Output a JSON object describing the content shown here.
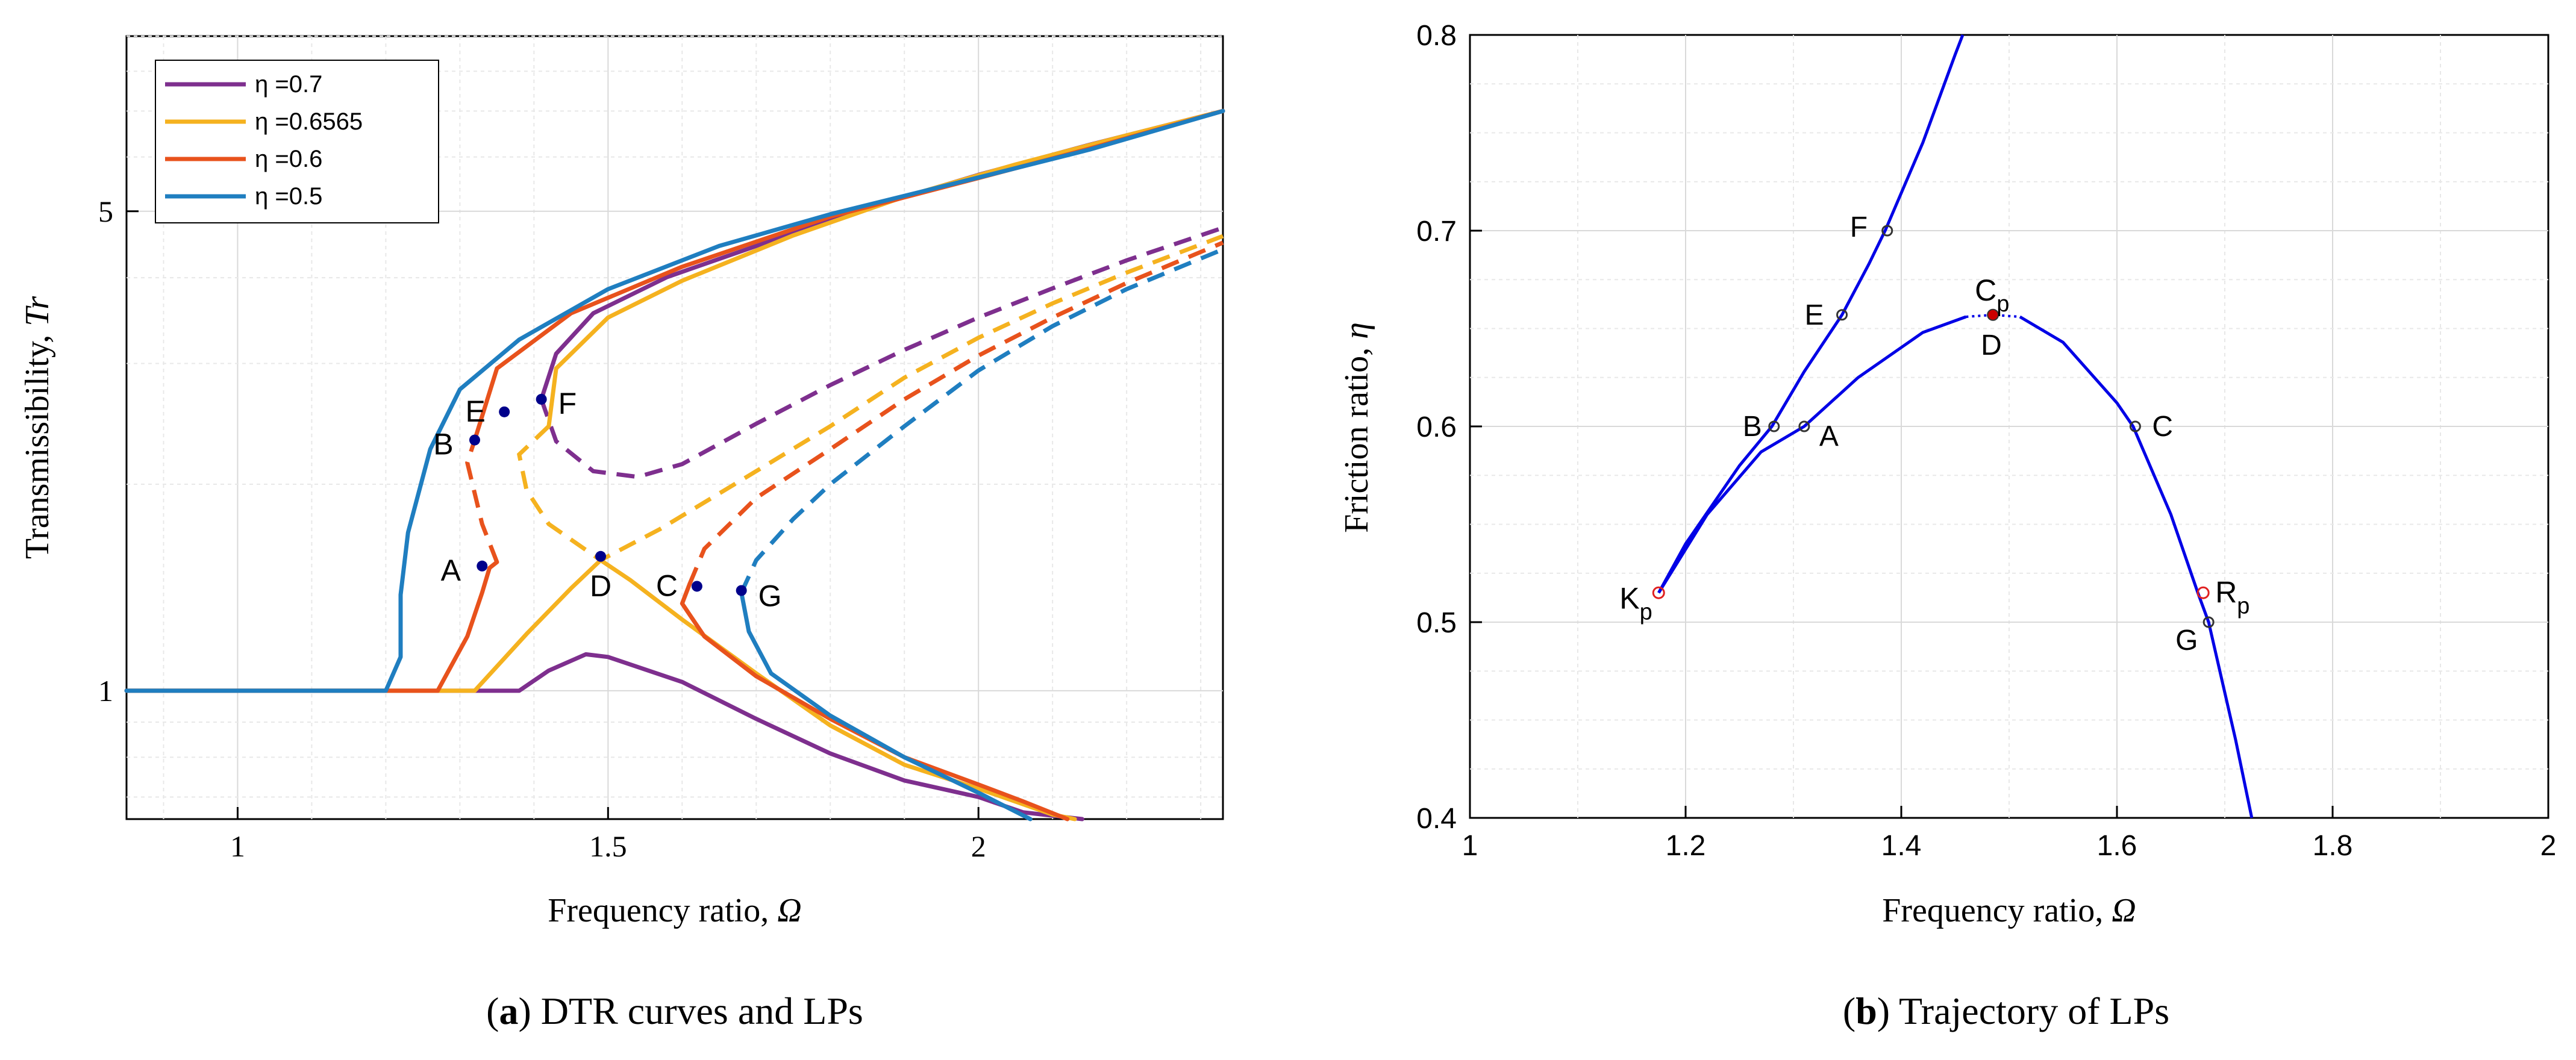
{
  "chart_data": [
    {
      "type": "line",
      "caption_letter": "a",
      "caption_text": " DTR curves and LPs",
      "xlabel": "Frequency ratio, ",
      "xlabel_symbol": "Ω",
      "ylabel": "Transmissibility, ",
      "ylabel_symbol": "Tr",
      "xlim": [
        0.85,
        2.33
      ],
      "ylim": [
        0.65,
        9.0
      ],
      "yscale": "log",
      "xticks": [
        1,
        1.5,
        2
      ],
      "xtick_labels": [
        "1",
        "1.5",
        "2"
      ],
      "yticks": [
        1,
        5
      ],
      "ytick_labels": [
        "1",
        "5"
      ],
      "grid": true,
      "legend_position": "top-left",
      "series": [
        {
          "name": "η =0.7",
          "color": "#7e2f8e",
          "lower": [
            [
              0.85,
              1
            ],
            [
              1.38,
              1.0
            ],
            [
              1.42,
              1.07
            ],
            [
              1.47,
              1.13
            ],
            [
              1.5,
              1.12
            ],
            [
              1.6,
              1.03
            ],
            [
              1.7,
              0.91
            ],
            [
              1.8,
              0.81
            ],
            [
              1.9,
              0.74
            ],
            [
              2.0,
              0.7
            ],
            [
              2.06,
              0.665
            ],
            [
              2.14,
              0.65
            ]
          ],
          "unstable": [
            [
              1.41,
              2.66
            ],
            [
              1.43,
              2.31
            ],
            [
              1.48,
              2.09
            ],
            [
              1.54,
              2.05
            ],
            [
              1.6,
              2.14
            ],
            [
              1.7,
              2.45
            ],
            [
              1.8,
              2.79
            ],
            [
              1.9,
              3.14
            ],
            [
              2.0,
              3.5
            ],
            [
              2.1,
              3.86
            ],
            [
              2.2,
              4.24
            ],
            [
              2.33,
              4.73
            ]
          ],
          "upper": [
            [
              1.41,
              2.66
            ],
            [
              1.43,
              3.1
            ],
            [
              1.48,
              3.55
            ],
            [
              1.58,
              4.01
            ],
            [
              1.7,
              4.45
            ],
            [
              1.85,
              5.05
            ],
            [
              2.0,
              5.65
            ],
            [
              2.15,
              6.25
            ],
            [
              2.33,
              7.0
            ]
          ]
        },
        {
          "name": "η =0.6565",
          "color": "#f5b21f",
          "lower": [
            [
              0.85,
              1
            ],
            [
              1.32,
              1.0
            ],
            [
              1.39,
              1.21
            ],
            [
              1.45,
              1.41
            ],
            [
              1.49,
              1.55
            ],
            [
              1.53,
              1.45
            ],
            [
              1.6,
              1.27
            ],
            [
              1.7,
              1.06
            ],
            [
              1.8,
              0.89
            ],
            [
              1.9,
              0.78
            ],
            [
              2.0,
              0.72
            ],
            [
              2.1,
              0.66
            ],
            [
              2.13,
              0.65
            ]
          ],
          "unstable": [
            [
              1.42,
              2.43
            ],
            [
              1.38,
              2.21
            ],
            [
              1.39,
              1.96
            ],
            [
              1.42,
              1.75
            ],
            [
              1.49,
              1.55
            ],
            [
              1.57,
              1.72
            ],
            [
              1.7,
              2.09
            ],
            [
              1.8,
              2.43
            ],
            [
              1.9,
              2.86
            ],
            [
              2.0,
              3.27
            ],
            [
              2.1,
              3.67
            ],
            [
              2.2,
              4.07
            ],
            [
              2.33,
              4.6
            ]
          ],
          "upper": [
            [
              1.42,
              2.43
            ],
            [
              1.43,
              2.95
            ],
            [
              1.5,
              3.5
            ],
            [
              1.6,
              3.96
            ],
            [
              1.75,
              4.61
            ],
            [
              1.9,
              5.25
            ],
            [
              2.05,
              5.85
            ],
            [
              2.2,
              6.45
            ],
            [
              2.33,
              7.0
            ]
          ]
        },
        {
          "name": "η =0.6",
          "color": "#e8521c",
          "lower": [
            [
              0.85,
              1
            ],
            [
              1.27,
              1.0
            ],
            [
              1.31,
              1.2
            ],
            [
              1.33,
              1.39
            ],
            [
              1.34,
              1.51
            ],
            [
              1.35,
              1.54
            ]
          ],
          "lower2": [
            [
              1.61,
              1.43
            ],
            [
              1.6,
              1.34
            ],
            [
              1.63,
              1.2
            ],
            [
              1.7,
              1.05
            ],
            [
              1.8,
              0.91
            ],
            [
              1.9,
              0.8
            ],
            [
              2.0,
              0.73
            ],
            [
              2.06,
              0.69
            ],
            [
              2.12,
              0.65
            ]
          ],
          "unstable": [
            [
              1.35,
              1.54
            ],
            [
              1.33,
              1.75
            ],
            [
              1.31,
              2.15
            ],
            [
              1.32,
              2.32
            ]
          ],
          "unstable2": [
            [
              1.61,
              1.43
            ],
            [
              1.63,
              1.61
            ],
            [
              1.7,
              1.91
            ],
            [
              1.8,
              2.25
            ],
            [
              1.9,
              2.66
            ],
            [
              2.0,
              3.08
            ],
            [
              2.1,
              3.5
            ],
            [
              2.2,
              3.93
            ],
            [
              2.33,
              4.5
            ]
          ],
          "upper": [
            [
              1.32,
              2.32
            ],
            [
              1.35,
              2.95
            ],
            [
              1.45,
              3.55
            ],
            [
              1.6,
              4.15
            ],
            [
              1.8,
              4.91
            ],
            [
              2.0,
              5.59
            ],
            [
              2.15,
              6.17
            ],
            [
              2.33,
              7.0
            ]
          ]
        },
        {
          "name": "η =0.5",
          "color": "#1f7ec0",
          "lower": [
            [
              0.85,
              1
            ],
            [
              1.2,
              1.0
            ],
            [
              1.22,
              1.12
            ],
            [
              1.22,
              1.38
            ],
            [
              1.23,
              1.7
            ],
            [
              1.26,
              2.25
            ],
            [
              1.3,
              2.75
            ],
            [
              1.38,
              3.25
            ],
            [
              1.5,
              3.85
            ],
            [
              1.65,
              4.45
            ],
            [
              1.8,
              4.95
            ],
            [
              2.0,
              5.6
            ],
            [
              2.15,
              6.15
            ],
            [
              2.33,
              7.0
            ]
          ],
          "lower2": [
            [
              1.68,
              1.39
            ],
            [
              1.69,
              1.22
            ],
            [
              1.72,
              1.06
            ],
            [
              1.8,
              0.92
            ],
            [
              1.9,
              0.8
            ],
            [
              2.0,
              0.71
            ],
            [
              2.07,
              0.65
            ]
          ],
          "unstable": [
            [
              1.68,
              1.39
            ],
            [
              1.7,
              1.55
            ],
            [
              1.75,
              1.78
            ],
            [
              1.8,
              2.0
            ],
            [
              1.9,
              2.43
            ],
            [
              2.0,
              2.93
            ],
            [
              2.1,
              3.4
            ],
            [
              2.2,
              3.85
            ],
            [
              2.33,
              4.4
            ]
          ]
        }
      ],
      "points": [
        {
          "label": "A",
          "x": 1.33,
          "y": 1.52
        },
        {
          "label": "B",
          "x": 1.32,
          "y": 2.32
        },
        {
          "label": "C",
          "x": 1.62,
          "y": 1.42
        },
        {
          "label": "D",
          "x": 1.49,
          "y": 1.57
        },
        {
          "label": "E",
          "x": 1.36,
          "y": 2.55
        },
        {
          "label": "F",
          "x": 1.41,
          "y": 2.66
        },
        {
          "label": "G",
          "x": 1.68,
          "y": 1.4
        }
      ]
    },
    {
      "type": "line",
      "caption_letter": "b",
      "caption_text": " Trajectory of LPs",
      "xlabel": "Frequency ratio, ",
      "xlabel_symbol": "Ω",
      "ylabel": "Friction ratio, ",
      "ylabel_symbol": "η",
      "xlim": [
        1,
        2
      ],
      "ylim": [
        0.4,
        0.8
      ],
      "xticks": [
        1,
        1.2,
        1.4,
        1.6,
        1.8,
        2
      ],
      "xtick_labels": [
        "1",
        "1.2",
        "1.4",
        "1.6",
        "1.8",
        "2"
      ],
      "yticks": [
        0.4,
        0.5,
        0.6,
        0.7,
        0.8
      ],
      "ytick_labels": [
        "0.4",
        "0.5",
        "0.6",
        "0.7",
        "0.8"
      ],
      "grid": true,
      "color": "#0000e6",
      "upper_branch": [
        [
          1.175,
          0.515
        ],
        [
          1.2,
          0.54
        ],
        [
          1.25,
          0.58
        ],
        [
          1.28,
          0.6
        ],
        [
          1.31,
          0.628
        ],
        [
          1.345,
          0.657
        ],
        [
          1.37,
          0.683
        ],
        [
          1.385,
          0.7
        ],
        [
          1.42,
          0.745
        ],
        [
          1.45,
          0.79
        ],
        [
          1.457,
          0.8
        ]
      ],
      "lower_branch": [
        [
          1.175,
          0.515
        ],
        [
          1.22,
          0.555
        ],
        [
          1.27,
          0.587
        ],
        [
          1.31,
          0.6
        ],
        [
          1.36,
          0.625
        ],
        [
          1.42,
          0.648
        ],
        [
          1.46,
          0.656
        ]
      ],
      "lower_branch_dotted": [
        [
          1.46,
          0.656
        ],
        [
          1.485,
          0.657
        ],
        [
          1.51,
          0.656
        ]
      ],
      "right_branch": [
        [
          1.51,
          0.656
        ],
        [
          1.55,
          0.643
        ],
        [
          1.6,
          0.612
        ],
        [
          1.615,
          0.6
        ],
        [
          1.65,
          0.555
        ],
        [
          1.675,
          0.515
        ],
        [
          1.685,
          0.5
        ],
        [
          1.71,
          0.44
        ],
        [
          1.725,
          0.4
        ]
      ],
      "points": [
        {
          "label": "A",
          "x": 1.31,
          "y": 0.6
        },
        {
          "label": "B",
          "x": 1.282,
          "y": 0.6
        },
        {
          "label": "C",
          "x": 1.617,
          "y": 0.6
        },
        {
          "label": "D",
          "x": 1.485,
          "y": 0.657
        },
        {
          "label": "E",
          "x": 1.345,
          "y": 0.657
        },
        {
          "label": "F",
          "x": 1.387,
          "y": 0.7
        },
        {
          "label": "G",
          "x": 1.685,
          "y": 0.5
        }
      ],
      "special_points": [
        {
          "label": "K",
          "sub": "p",
          "x": 1.175,
          "y": 0.515
        },
        {
          "label": "R",
          "sub": "p",
          "x": 1.68,
          "y": 0.515
        },
        {
          "label": "C",
          "sub": "p",
          "x": 1.485,
          "y": 0.657
        }
      ]
    }
  ]
}
